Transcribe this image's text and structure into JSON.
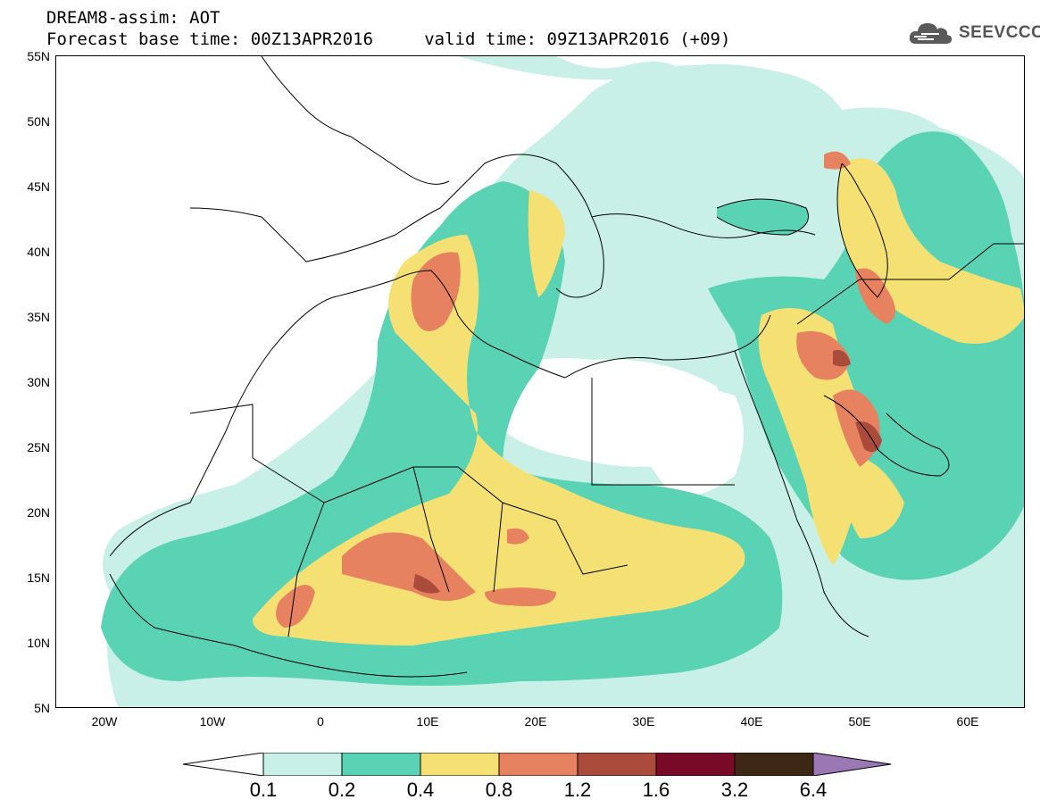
{
  "title": {
    "line1": "DREAM8-assim: AOT",
    "line2": "Forecast base time: 00Z13APR2016     valid time: 09Z13APR2016 (+09)"
  },
  "logo": {
    "text": "SEEVCCC",
    "icon": "cloud-icon"
  },
  "map": {
    "region": "North Africa, Europe, Middle East",
    "lon_range": [
      -25,
      65
    ],
    "lat_range": [
      5,
      55
    ],
    "lat_labels": [
      "55N",
      "50N",
      "45N",
      "40N",
      "35N",
      "30N",
      "25N",
      "20N",
      "15N",
      "10N",
      "5N"
    ],
    "lon_labels": [
      "20W",
      "10W",
      "0",
      "10E",
      "20E",
      "30E",
      "40E",
      "50E",
      "60E"
    ]
  },
  "colorbar": {
    "levels": [
      "0.1",
      "0.2",
      "0.4",
      "0.8",
      "1.2",
      "1.6",
      "3.2",
      "6.4"
    ],
    "colors": [
      "#ffffff",
      "#c8f0e6",
      "#5ad2b4",
      "#f5e173",
      "#e6825f",
      "#aa4b3c",
      "#780a28",
      "#3c2814",
      "#9b78b4"
    ]
  }
}
